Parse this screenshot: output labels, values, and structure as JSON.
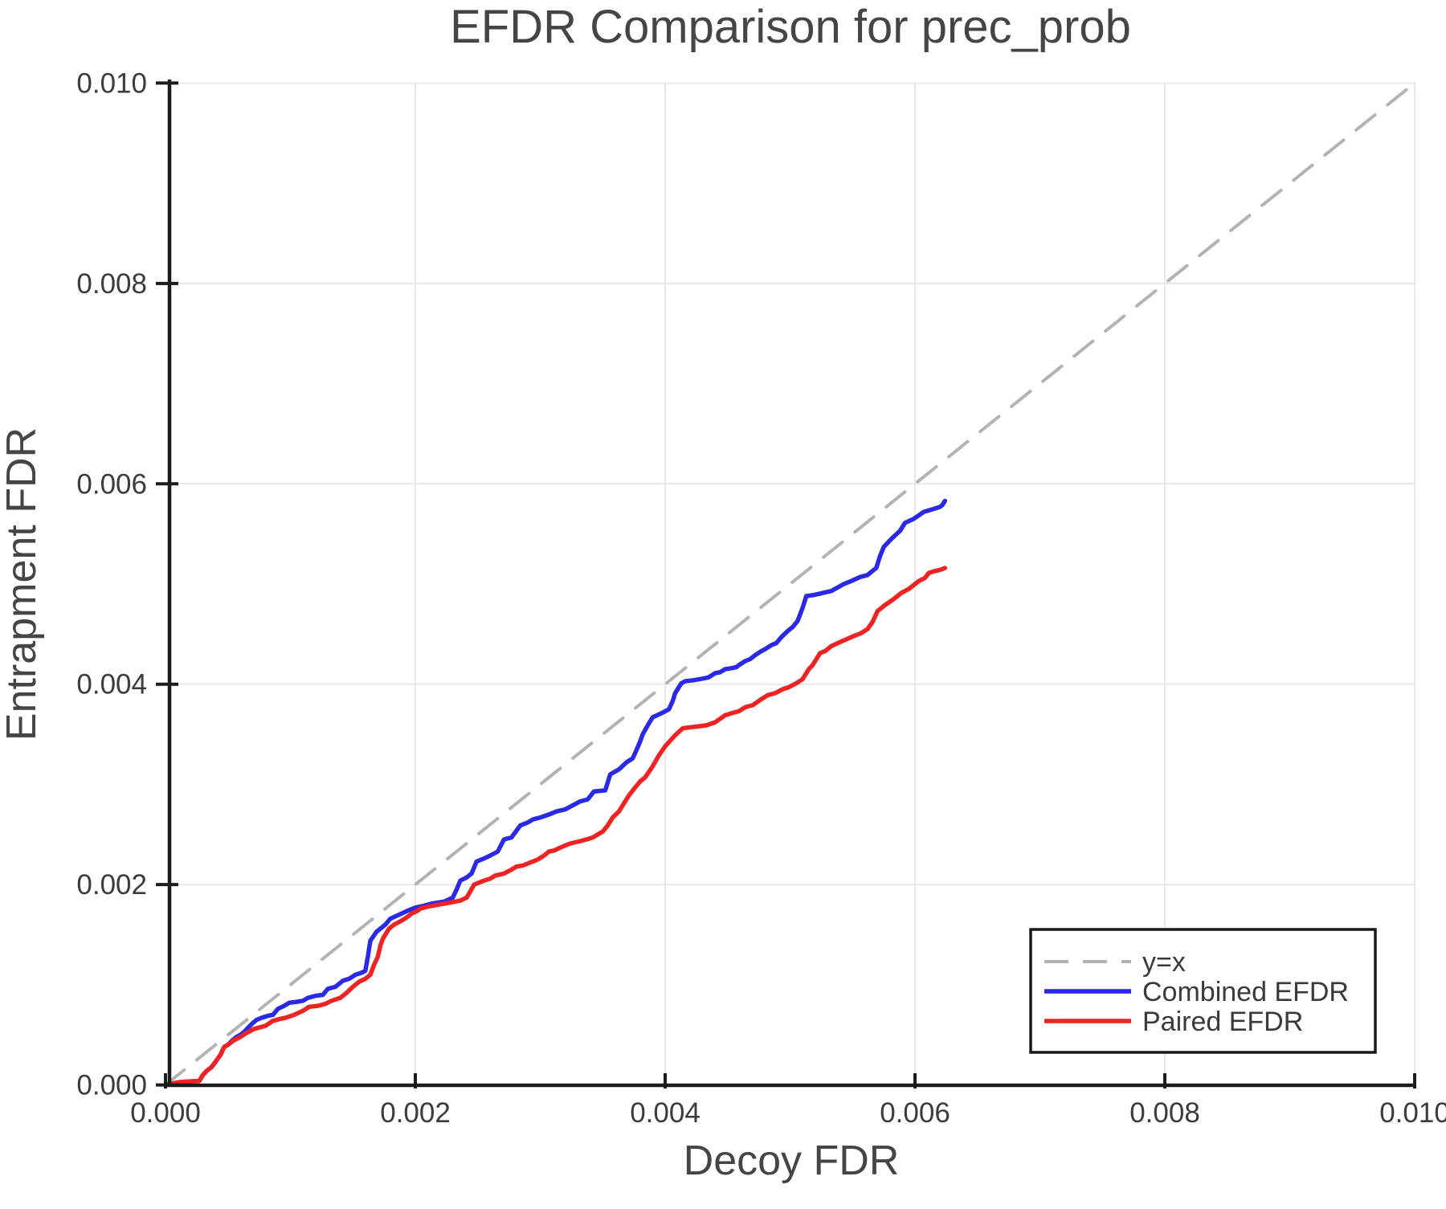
{
  "chart_data": {
    "type": "line",
    "title": "EFDR Comparison for prec_prob",
    "xlabel": "Decoy FDR",
    "ylabel": "Entrapment FDR",
    "xlim": [
      0.0,
      0.01
    ],
    "ylim": [
      0.0,
      0.01
    ],
    "grid": true,
    "legend_position": "lower right",
    "x_tick_values": [
      0.0,
      0.002,
      0.004,
      0.006,
      0.008,
      0.01
    ],
    "x_tick_labels": [
      "0.000",
      "0.002",
      "0.004",
      "0.006",
      "0.008",
      "0.010"
    ],
    "y_tick_values": [
      0.0,
      0.002,
      0.004,
      0.006,
      0.008,
      0.01
    ],
    "y_tick_labels": [
      "0.000",
      "0.002",
      "0.004",
      "0.006",
      "0.008",
      "0.010"
    ],
    "point_scale": 0.001,
    "colors": {
      "identity_line": "#b3b3b3",
      "combined": "#2a2ae6",
      "paired": "#f02323",
      "grid": "#e8e8e8",
      "spine": "#1c1c1c",
      "tick_text": "#3c3c3c",
      "title_text": "#454545"
    },
    "series": [
      {
        "name": "y=x",
        "style": "dashed",
        "color": "#b3b3b3",
        "points": [
          [
            0,
            0
          ],
          [
            10,
            10
          ]
        ]
      },
      {
        "name": "Combined EFDR",
        "style": "solid",
        "color": "#2a2ae6",
        "points": [
          [
            0,
            0
          ],
          [
            0.08,
            0.02
          ],
          [
            0.12,
            0.03
          ],
          [
            0.27,
            0.04
          ],
          [
            0.3,
            0.1
          ],
          [
            0.33,
            0.14
          ],
          [
            0.37,
            0.18
          ],
          [
            0.4,
            0.23
          ],
          [
            0.44,
            0.3
          ],
          [
            0.47,
            0.38
          ],
          [
            0.5,
            0.4
          ],
          [
            0.53,
            0.44
          ],
          [
            0.57,
            0.48
          ],
          [
            0.6,
            0.5
          ],
          [
            0.63,
            0.53
          ],
          [
            0.66,
            0.57
          ],
          [
            0.7,
            0.62
          ],
          [
            0.73,
            0.65
          ],
          [
            0.77,
            0.67
          ],
          [
            0.82,
            0.69
          ],
          [
            0.86,
            0.7
          ],
          [
            0.9,
            0.76
          ],
          [
            0.95,
            0.79
          ],
          [
            0.99,
            0.82
          ],
          [
            1.05,
            0.83
          ],
          [
            1.1,
            0.84
          ],
          [
            1.14,
            0.87
          ],
          [
            1.2,
            0.89
          ],
          [
            1.26,
            0.9
          ],
          [
            1.3,
            0.96
          ],
          [
            1.36,
            0.98
          ],
          [
            1.42,
            1.04
          ],
          [
            1.47,
            1.06
          ],
          [
            1.52,
            1.1
          ],
          [
            1.57,
            1.12
          ],
          [
            1.6,
            1.14
          ],
          [
            1.62,
            1.28
          ],
          [
            1.64,
            1.44
          ],
          [
            1.69,
            1.53
          ],
          [
            1.76,
            1.6
          ],
          [
            1.8,
            1.66
          ],
          [
            1.87,
            1.7
          ],
          [
            1.94,
            1.74
          ],
          [
            2.0,
            1.77
          ],
          [
            2.07,
            1.79
          ],
          [
            2.13,
            1.81
          ],
          [
            2.23,
            1.83
          ],
          [
            2.3,
            1.87
          ],
          [
            2.33,
            1.95
          ],
          [
            2.36,
            2.04
          ],
          [
            2.41,
            2.07
          ],
          [
            2.45,
            2.11
          ],
          [
            2.47,
            2.17
          ],
          [
            2.49,
            2.23
          ],
          [
            2.55,
            2.26
          ],
          [
            2.6,
            2.29
          ],
          [
            2.66,
            2.33
          ],
          [
            2.71,
            2.45
          ],
          [
            2.77,
            2.47
          ],
          [
            2.84,
            2.59
          ],
          [
            2.9,
            2.62
          ],
          [
            2.94,
            2.65
          ],
          [
            3.0,
            2.67
          ],
          [
            3.07,
            2.7
          ],
          [
            3.13,
            2.73
          ],
          [
            3.2,
            2.75
          ],
          [
            3.26,
            2.79
          ],
          [
            3.32,
            2.83
          ],
          [
            3.38,
            2.85
          ],
          [
            3.43,
            2.93
          ],
          [
            3.52,
            2.94
          ],
          [
            3.56,
            3.1
          ],
          [
            3.63,
            3.15
          ],
          [
            3.69,
            3.22
          ],
          [
            3.74,
            3.26
          ],
          [
            3.77,
            3.34
          ],
          [
            3.8,
            3.43
          ],
          [
            3.82,
            3.5
          ],
          [
            3.87,
            3.61
          ],
          [
            3.9,
            3.67
          ],
          [
            3.97,
            3.71
          ],
          [
            4.03,
            3.75
          ],
          [
            4.06,
            3.83
          ],
          [
            4.08,
            3.91
          ],
          [
            4.13,
            4.01
          ],
          [
            4.16,
            4.03
          ],
          [
            4.23,
            4.04
          ],
          [
            4.32,
            4.06
          ],
          [
            4.35,
            4.07
          ],
          [
            4.4,
            4.11
          ],
          [
            4.44,
            4.12
          ],
          [
            4.48,
            4.15
          ],
          [
            4.53,
            4.16
          ],
          [
            4.57,
            4.17
          ],
          [
            4.59,
            4.19
          ],
          [
            4.64,
            4.23
          ],
          [
            4.68,
            4.25
          ],
          [
            4.72,
            4.29
          ],
          [
            4.77,
            4.33
          ],
          [
            4.8,
            4.35
          ],
          [
            4.85,
            4.39
          ],
          [
            4.89,
            4.41
          ],
          [
            4.93,
            4.47
          ],
          [
            4.98,
            4.53
          ],
          [
            5.02,
            4.57
          ],
          [
            5.06,
            4.63
          ],
          [
            5.1,
            4.76
          ],
          [
            5.13,
            4.88
          ],
          [
            5.19,
            4.89
          ],
          [
            5.26,
            4.91
          ],
          [
            5.33,
            4.93
          ],
          [
            5.43,
            5.0
          ],
          [
            5.49,
            5.03
          ],
          [
            5.56,
            5.07
          ],
          [
            5.62,
            5.09
          ],
          [
            5.69,
            5.16
          ],
          [
            5.72,
            5.28
          ],
          [
            5.75,
            5.37
          ],
          [
            5.81,
            5.45
          ],
          [
            5.88,
            5.53
          ],
          [
            5.92,
            5.61
          ],
          [
            5.99,
            5.65
          ],
          [
            6.07,
            5.72
          ],
          [
            6.15,
            5.75
          ],
          [
            6.2,
            5.77
          ],
          [
            6.22,
            5.79
          ],
          [
            6.24,
            5.83
          ]
        ]
      },
      {
        "name": "Paired EFDR",
        "style": "solid",
        "color": "#f02323",
        "points": [
          [
            0,
            0
          ],
          [
            0.08,
            0.02
          ],
          [
            0.12,
            0.03
          ],
          [
            0.27,
            0.04
          ],
          [
            0.3,
            0.1
          ],
          [
            0.33,
            0.14
          ],
          [
            0.37,
            0.18
          ],
          [
            0.4,
            0.23
          ],
          [
            0.44,
            0.3
          ],
          [
            0.47,
            0.38
          ],
          [
            0.51,
            0.41
          ],
          [
            0.54,
            0.44
          ],
          [
            0.6,
            0.48
          ],
          [
            0.65,
            0.52
          ],
          [
            0.71,
            0.56
          ],
          [
            0.77,
            0.58
          ],
          [
            0.8,
            0.59
          ],
          [
            0.86,
            0.64
          ],
          [
            0.92,
            0.66
          ],
          [
            0.96,
            0.67
          ],
          [
            1.03,
            0.7
          ],
          [
            1.1,
            0.74
          ],
          [
            1.15,
            0.78
          ],
          [
            1.22,
            0.79
          ],
          [
            1.28,
            0.81
          ],
          [
            1.33,
            0.84
          ],
          [
            1.4,
            0.87
          ],
          [
            1.45,
            0.92
          ],
          [
            1.5,
            0.98
          ],
          [
            1.55,
            1.03
          ],
          [
            1.6,
            1.06
          ],
          [
            1.64,
            1.1
          ],
          [
            1.67,
            1.2
          ],
          [
            1.7,
            1.28
          ],
          [
            1.72,
            1.39
          ],
          [
            1.74,
            1.46
          ],
          [
            1.77,
            1.52
          ],
          [
            1.79,
            1.56
          ],
          [
            1.83,
            1.6
          ],
          [
            1.89,
            1.64
          ],
          [
            1.94,
            1.68
          ],
          [
            1.97,
            1.71
          ],
          [
            2.02,
            1.74
          ],
          [
            2.04,
            1.76
          ],
          [
            2.1,
            1.78
          ],
          [
            2.19,
            1.8
          ],
          [
            2.28,
            1.82
          ],
          [
            2.36,
            1.84
          ],
          [
            2.41,
            1.87
          ],
          [
            2.43,
            1.91
          ],
          [
            2.47,
            2.0
          ],
          [
            2.53,
            2.03
          ],
          [
            2.6,
            2.06
          ],
          [
            2.64,
            2.09
          ],
          [
            2.71,
            2.11
          ],
          [
            2.77,
            2.15
          ],
          [
            2.81,
            2.18
          ],
          [
            2.86,
            2.19
          ],
          [
            2.92,
            2.22
          ],
          [
            2.98,
            2.25
          ],
          [
            3.03,
            2.29
          ],
          [
            3.07,
            2.33
          ],
          [
            3.11,
            2.34
          ],
          [
            3.18,
            2.38
          ],
          [
            3.24,
            2.41
          ],
          [
            3.31,
            2.43
          ],
          [
            3.37,
            2.45
          ],
          [
            3.42,
            2.47
          ],
          [
            3.5,
            2.53
          ],
          [
            3.54,
            2.59
          ],
          [
            3.58,
            2.67
          ],
          [
            3.63,
            2.73
          ],
          [
            3.67,
            2.81
          ],
          [
            3.71,
            2.89
          ],
          [
            3.76,
            2.97
          ],
          [
            3.8,
            3.03
          ],
          [
            3.84,
            3.07
          ],
          [
            3.9,
            3.18
          ],
          [
            3.95,
            3.29
          ],
          [
            4.0,
            3.38
          ],
          [
            4.08,
            3.49
          ],
          [
            4.14,
            3.56
          ],
          [
            4.2,
            3.57
          ],
          [
            4.27,
            3.58
          ],
          [
            4.33,
            3.59
          ],
          [
            4.4,
            3.62
          ],
          [
            4.48,
            3.69
          ],
          [
            4.53,
            3.71
          ],
          [
            4.59,
            3.73
          ],
          [
            4.64,
            3.77
          ],
          [
            4.7,
            3.79
          ],
          [
            4.77,
            3.85
          ],
          [
            4.82,
            3.89
          ],
          [
            4.88,
            3.91
          ],
          [
            4.94,
            3.95
          ],
          [
            4.99,
            3.97
          ],
          [
            5.05,
            4.01
          ],
          [
            5.1,
            4.05
          ],
          [
            5.15,
            4.15
          ],
          [
            5.18,
            4.19
          ],
          [
            5.24,
            4.31
          ],
          [
            5.28,
            4.33
          ],
          [
            5.33,
            4.38
          ],
          [
            5.4,
            4.42
          ],
          [
            5.49,
            4.47
          ],
          [
            5.57,
            4.51
          ],
          [
            5.62,
            4.55
          ],
          [
            5.66,
            4.62
          ],
          [
            5.7,
            4.73
          ],
          [
            5.76,
            4.79
          ],
          [
            5.83,
            4.85
          ],
          [
            5.89,
            4.91
          ],
          [
            5.95,
            4.95
          ],
          [
            6.03,
            5.03
          ],
          [
            6.08,
            5.06
          ],
          [
            6.11,
            5.11
          ],
          [
            6.16,
            5.13
          ],
          [
            6.2,
            5.14
          ],
          [
            6.24,
            5.16
          ]
        ]
      }
    ]
  }
}
